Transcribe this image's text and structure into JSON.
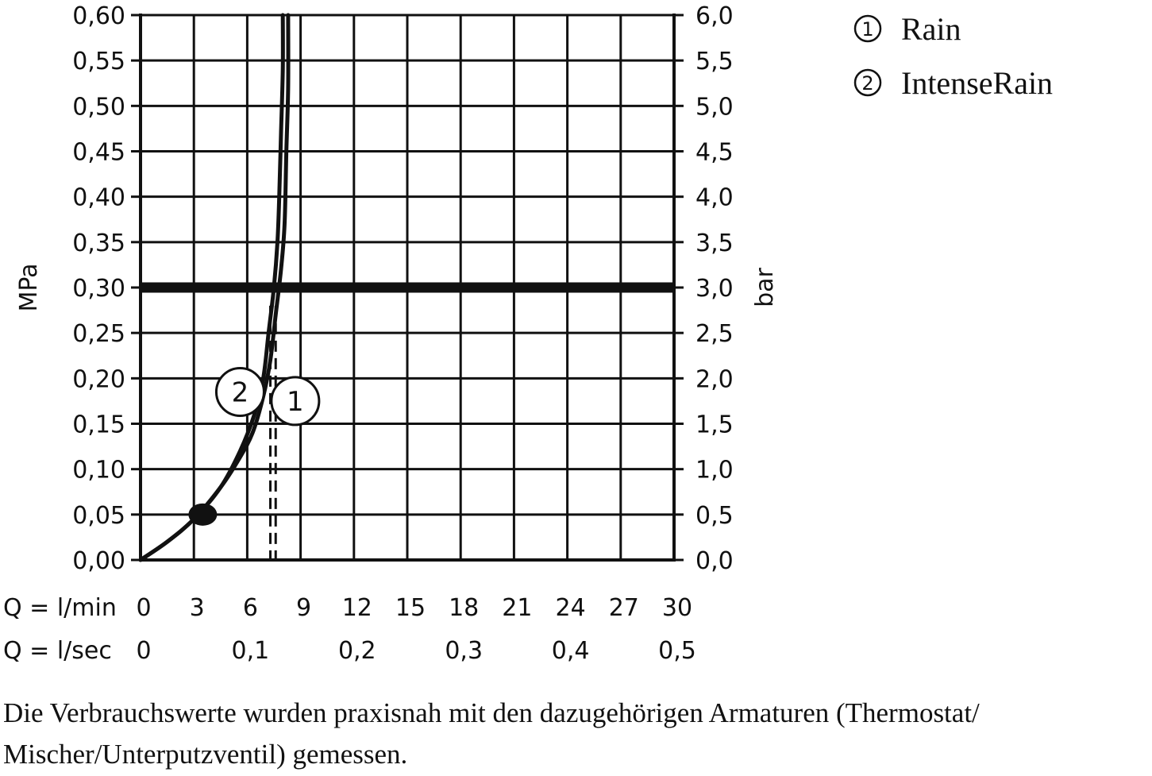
{
  "chart_data": {
    "type": "line",
    "y_left": {
      "title": "MPa",
      "ticks": [
        "0,00",
        "0,05",
        "0,10",
        "0,15",
        "0,20",
        "0,25",
        "0,30",
        "0,35",
        "0,40",
        "0,45",
        "0,50",
        "0,55",
        "0,60"
      ],
      "range": [
        0,
        0.6
      ]
    },
    "y_right": {
      "title": "bar",
      "ticks": [
        "0,0",
        "0,5",
        "1,0",
        "1,5",
        "2,0",
        "2,5",
        "3,0",
        "3,5",
        "4,0",
        "4,5",
        "5,0",
        "5,5",
        "6,0"
      ],
      "range": [
        0,
        6
      ]
    },
    "x_primary": {
      "label": "Q = l/min",
      "ticks": [
        "0",
        "3",
        "6",
        "9",
        "12",
        "15",
        "18",
        "21",
        "24",
        "27",
        "30"
      ],
      "range": [
        0,
        30
      ]
    },
    "x_secondary": {
      "label": "Q = l/sec",
      "ticks": [
        "0",
        "0,1",
        "0,2",
        "0,3",
        "0,4",
        "0,5"
      ],
      "values": [
        0,
        6,
        12,
        18,
        24,
        30
      ]
    },
    "grid": true,
    "reference_line": {
      "y": 0.3
    },
    "series": [
      {
        "name": "Rain",
        "marker": "1",
        "x": [
          0,
          1.5,
          3,
          4.5,
          5.5,
          6.3,
          6.9,
          7.3,
          7.6,
          7.9,
          8.1,
          8.2,
          8.3,
          8.3
        ],
        "y": [
          0,
          0.02,
          0.045,
          0.08,
          0.11,
          0.14,
          0.18,
          0.22,
          0.27,
          0.32,
          0.37,
          0.45,
          0.52,
          0.6
        ],
        "dashed_drop_x": 7.6
      },
      {
        "name": "IntenseRain",
        "marker": "2",
        "x": [
          0,
          1.5,
          3,
          4.5,
          5.6,
          6.4,
          6.9,
          7.2,
          7.5,
          7.7,
          7.8,
          7.9,
          8.0,
          8.0
        ],
        "y": [
          0,
          0.02,
          0.045,
          0.08,
          0.12,
          0.16,
          0.2,
          0.25,
          0.3,
          0.35,
          0.4,
          0.47,
          0.54,
          0.6
        ],
        "dashed_drop_x": 7.3
      }
    ],
    "min_pressure_point": {
      "x": 3.5,
      "y": 0.05
    },
    "legend": {
      "placement": "top-right",
      "entries": [
        {
          "num": "1",
          "label": "Rain"
        },
        {
          "num": "2",
          "label": "IntenseRain"
        }
      ]
    },
    "colors": {
      "ink": "#111111",
      "background": "#ffffff"
    }
  },
  "caption": "Die Verbrauchswerte wurden praxisnah mit den dazugehörigen Armaturen (Thermostat/ Mischer/Unterputzventil) gemessen."
}
